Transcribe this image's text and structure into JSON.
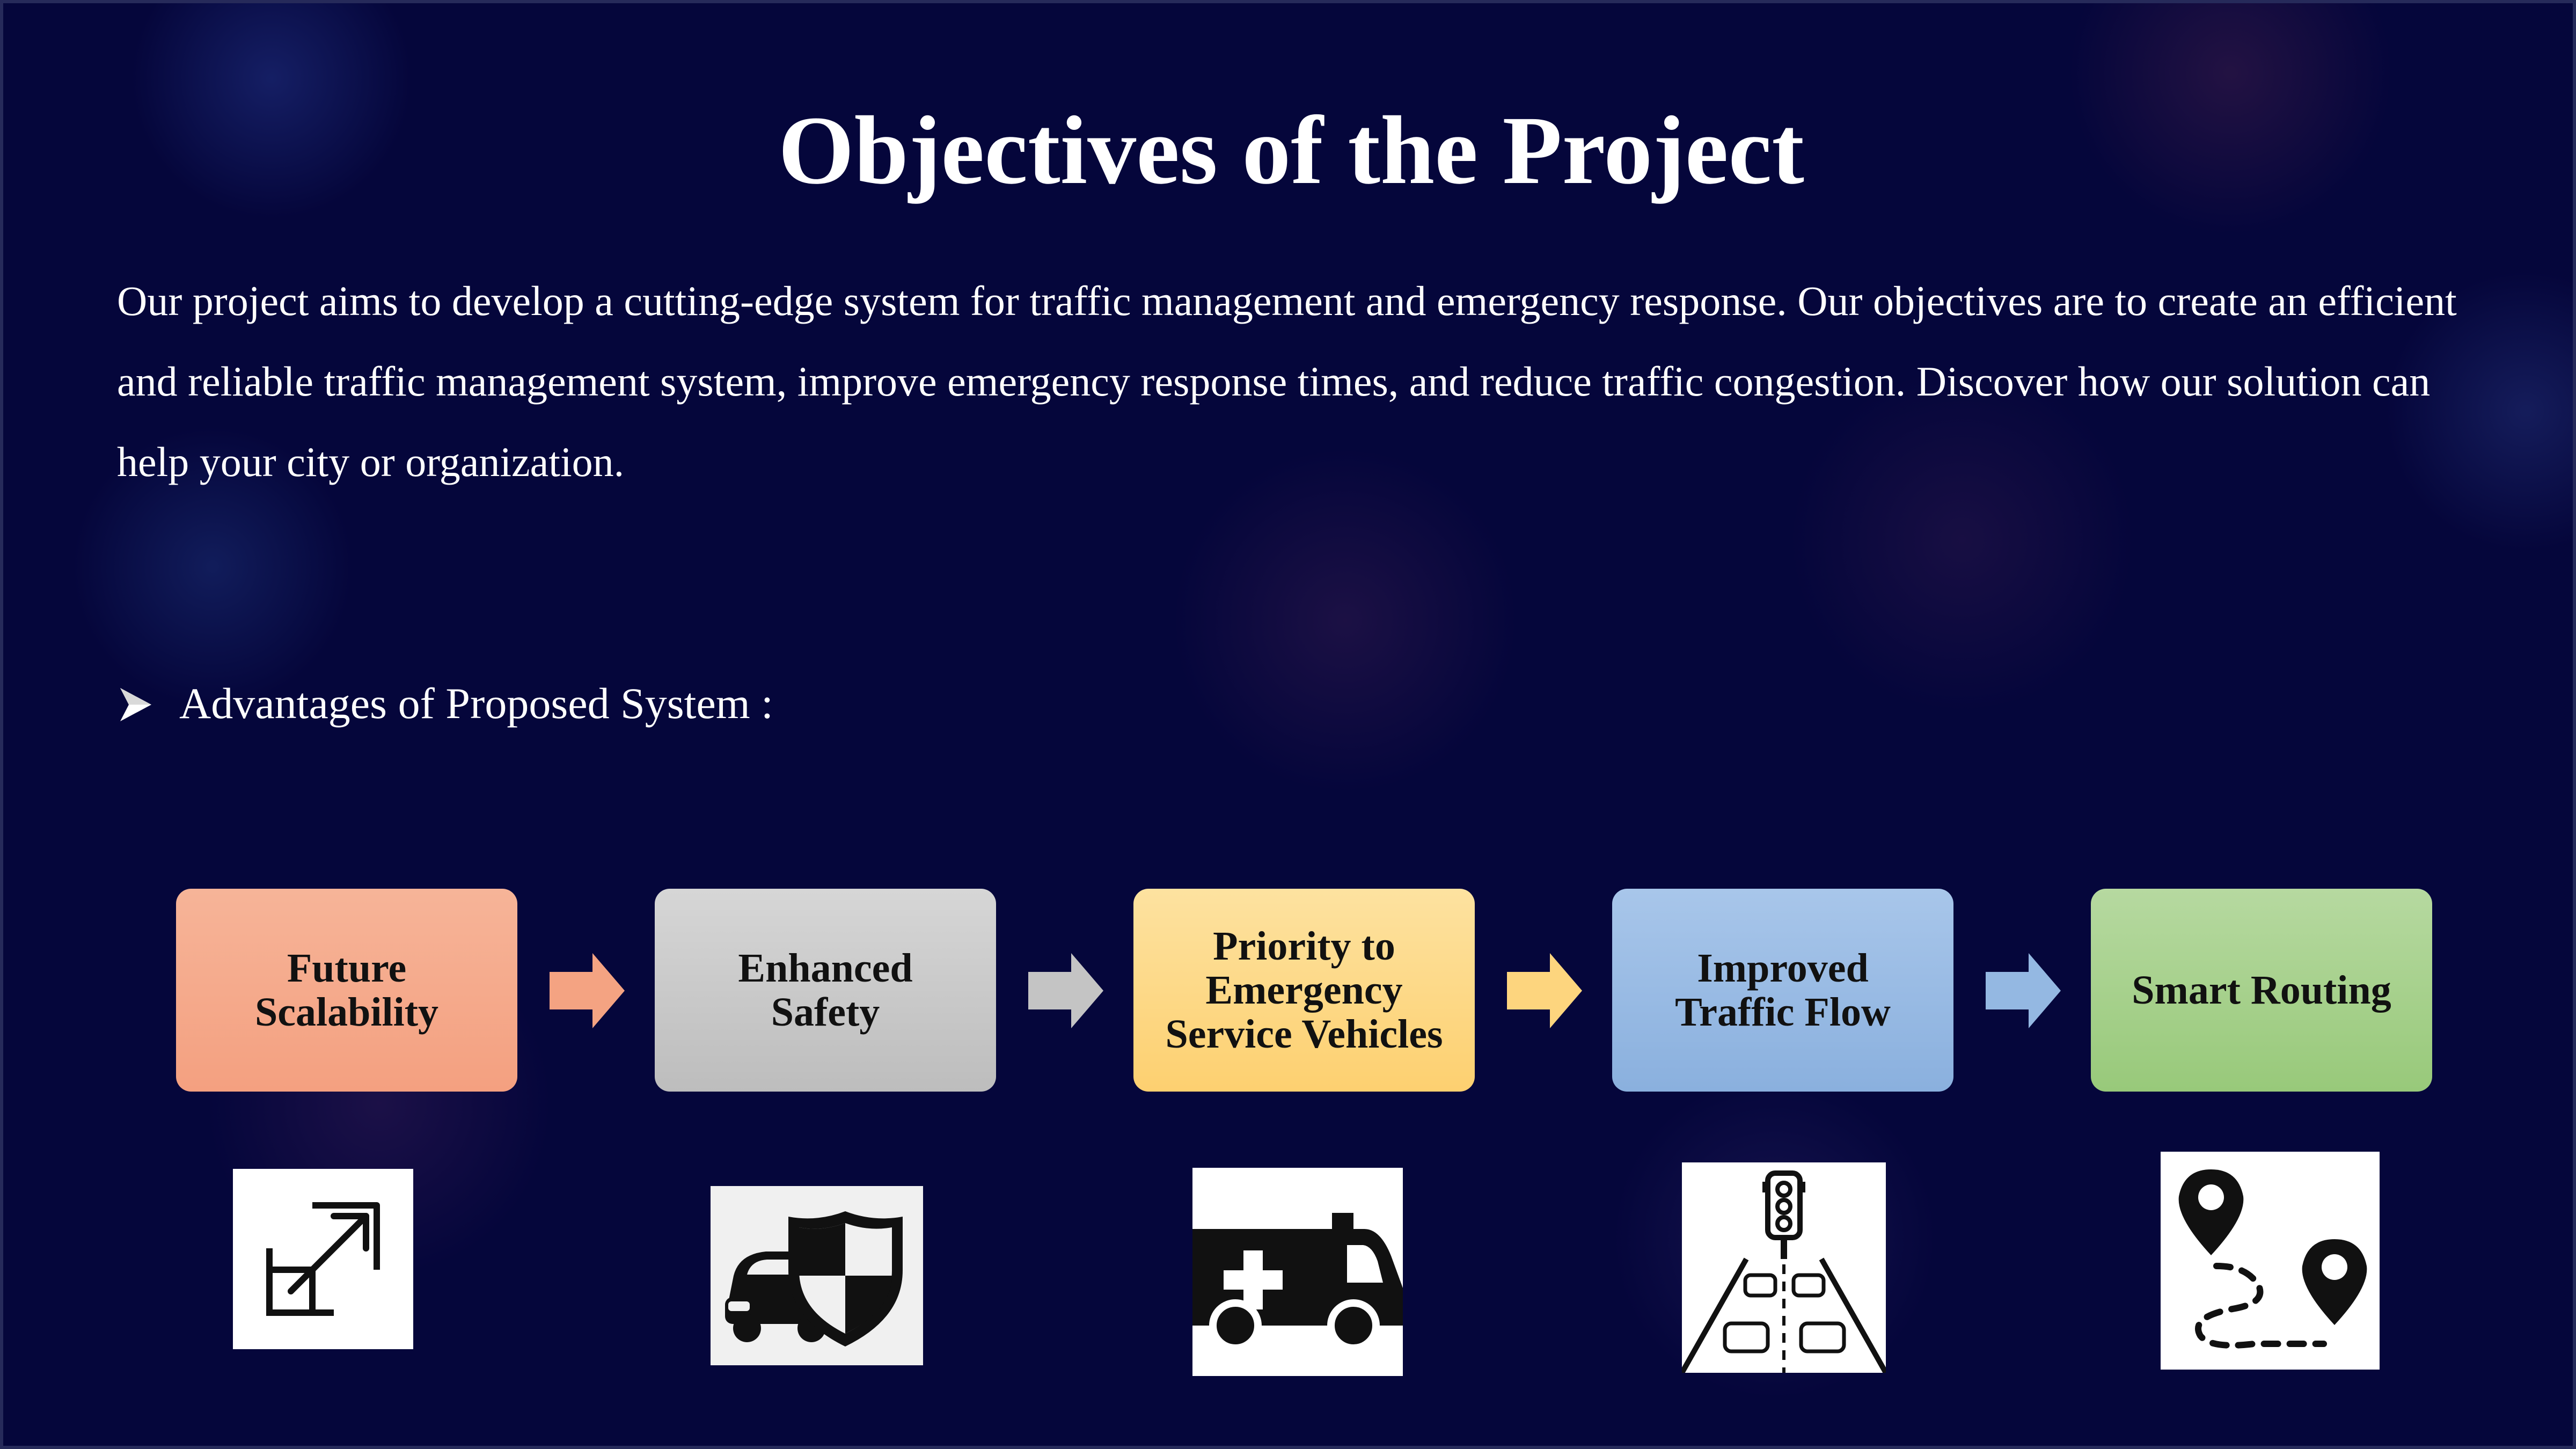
{
  "slide": {
    "title": "Objectives of the Project",
    "intro": "Our project aims to develop a cutting-edge system for traffic management and emergency response. Our objectives are to create an efficient and reliable traffic management system, improve emergency response times, and reduce traffic congestion. Discover how our solution can help your city or organization.",
    "bullet": "Advantages of Proposed System :"
  },
  "flow": {
    "steps": [
      {
        "label": "Future Scalability",
        "color": "#f4a382",
        "icon": "expand-arrow-icon"
      },
      {
        "label": "Enhanced Safety",
        "color": "#c8c8c8",
        "icon": "car-shield-icon"
      },
      {
        "label": "Priority to Emergency Service Vehicles",
        "color": "#fdd57e",
        "icon": "ambulance-icon"
      },
      {
        "label": "Improved Traffic Flow",
        "color": "#94b8e2",
        "icon": "traffic-light-road-icon"
      },
      {
        "label": "Smart Routing",
        "color": "#a5d08a",
        "icon": "route-pins-icon"
      }
    ]
  }
}
